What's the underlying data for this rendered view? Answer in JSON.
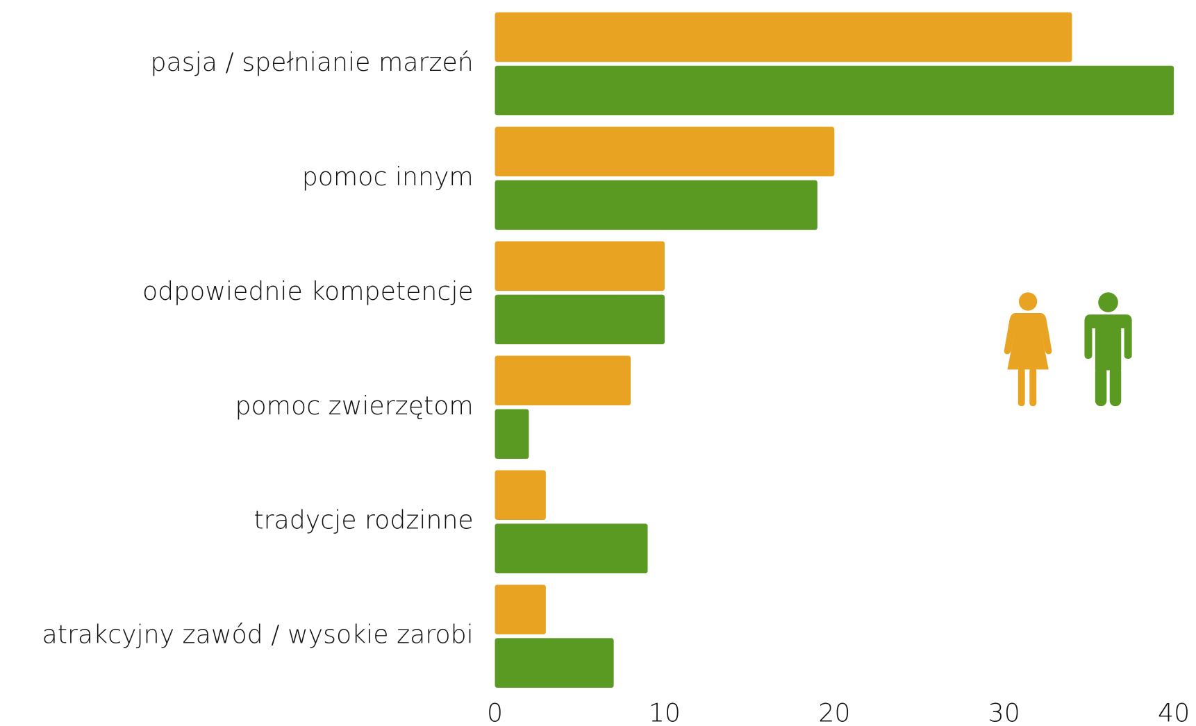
{
  "chart_data": {
    "type": "hbar",
    "categories": [
      "pasja / spełnianie marzeń",
      "pomoc innym",
      "odpowiednie kompetencje",
      "pomoc zwierzętom",
      "tradycje rodzinne",
      "atrakcyjny zawód / wysokie zarobi"
    ],
    "series": [
      {
        "color": "#e8a323",
        "values": [
          34,
          20,
          10,
          8,
          3,
          3
        ]
      },
      {
        "color": "#5a9a23",
        "values": [
          40,
          19,
          10,
          2,
          9,
          7
        ]
      }
    ],
    "xlim": [
      0,
      40
    ],
    "xticks": [
      0,
      10,
      20,
      30,
      40
    ],
    "grid": false
  }
}
